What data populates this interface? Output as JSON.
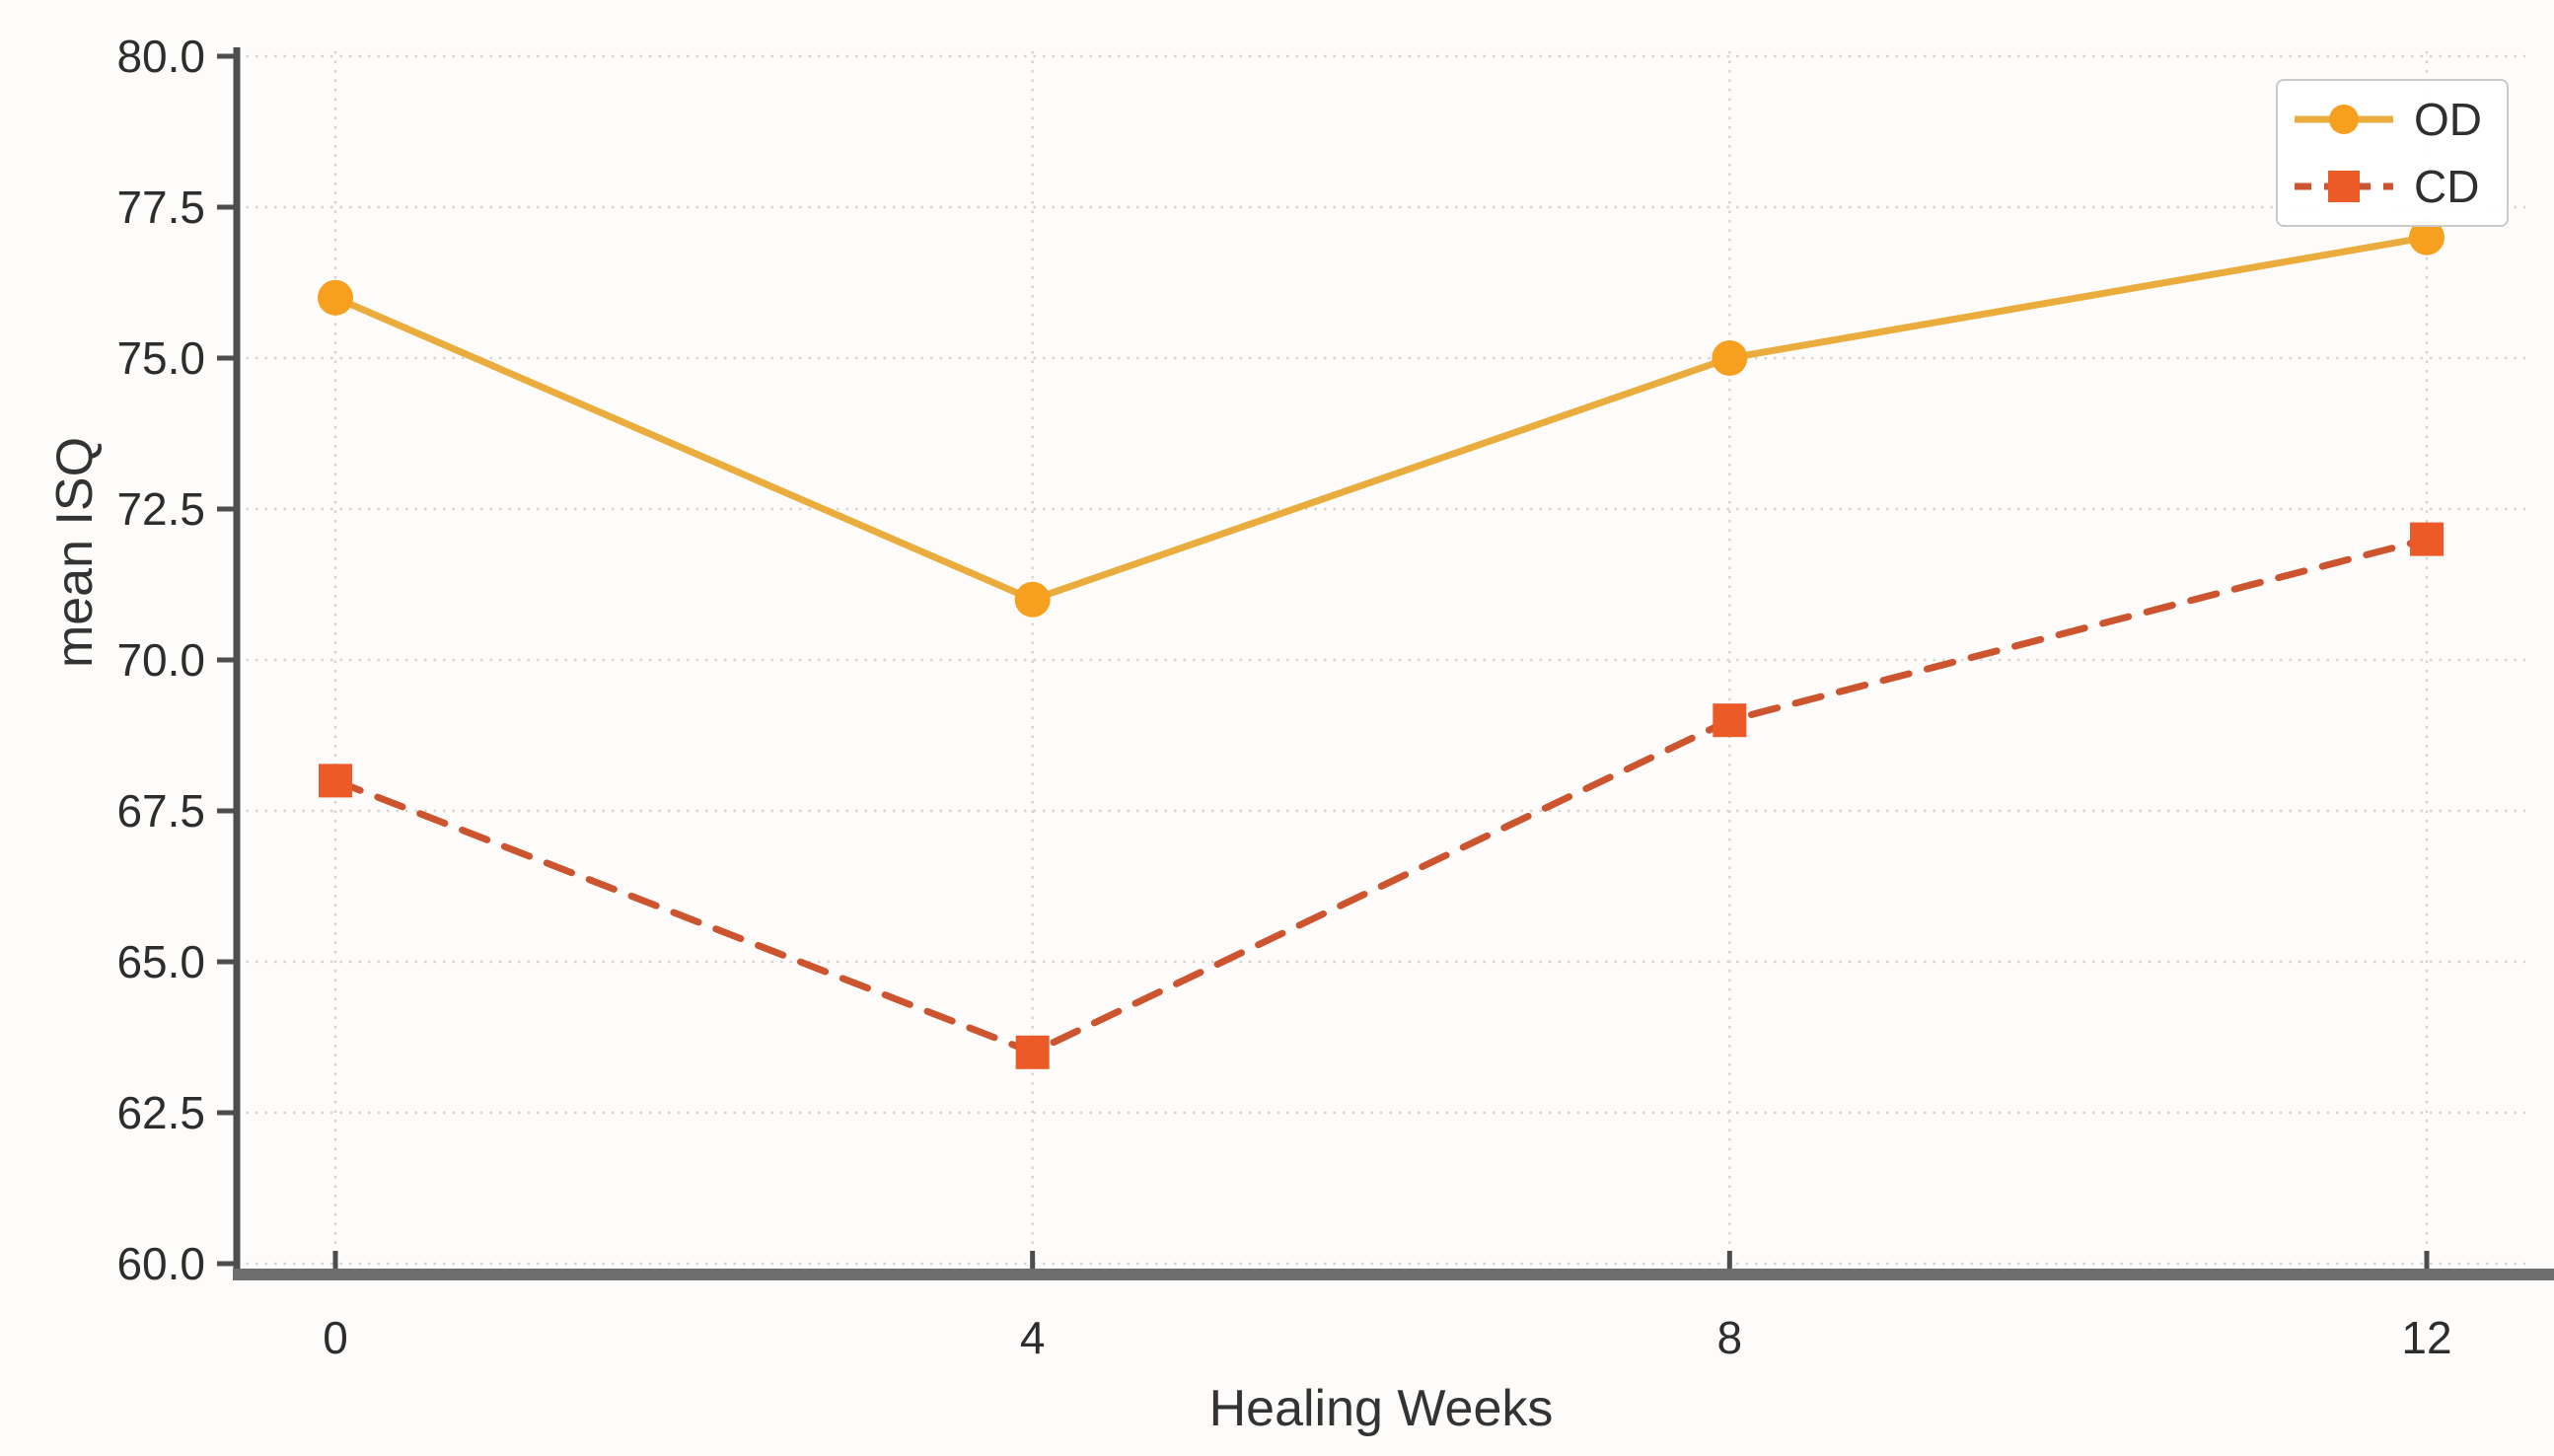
{
  "chart_data": {
    "type": "line",
    "title": "",
    "xlabel": "Healing Weeks",
    "ylabel": "mean ISQ",
    "x": [
      0,
      4,
      8,
      12
    ],
    "xticks": [
      "0",
      "4",
      "8",
      "12"
    ],
    "yticks": [
      "60.0",
      "62.5",
      "65.0",
      "67.5",
      "70.0",
      "72.5",
      "75.0",
      "77.5",
      "80.0"
    ],
    "ylim": [
      60,
      80
    ],
    "xlim": [
      0,
      12
    ],
    "grid": "dotted",
    "legend_position": "upper right",
    "series": [
      {
        "name": "OD",
        "values": [
          76,
          71,
          75,
          77
        ],
        "line_color": "#EBAC3E",
        "marker_color": "#F7A01F",
        "line_style": "solid",
        "marker": "circle"
      },
      {
        "name": "CD",
        "values": [
          68,
          63.5,
          69,
          72
        ],
        "line_color": "#CC5530",
        "marker_color": "#EB5A27",
        "line_style": "dashed",
        "marker": "square"
      }
    ],
    "colors": {
      "grid": "#d6d4d2",
      "spine": "#4d4d4d",
      "bottom_spine": "#6e6e6e",
      "tick_text": "#2d2d2d"
    }
  }
}
